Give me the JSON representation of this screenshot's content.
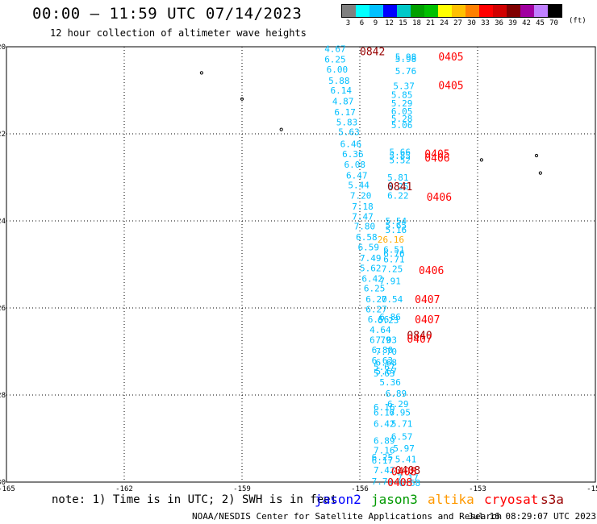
{
  "title": "00:00 – 11:59 UTC 07/14/2023",
  "subtitle": "12 hour collection of altimeter wave heights",
  "scale": {
    "labels": [
      "3",
      "6",
      "9",
      "12",
      "15",
      "18",
      "21",
      "24",
      "27",
      "30",
      "33",
      "36",
      "39",
      "42",
      "45",
      "70"
    ],
    "colors": [
      "#808080",
      "#00ffff",
      "#00c0ff",
      "#0000ff",
      "#00c8c8",
      "#00a000",
      "#00c000",
      "#ffff00",
      "#ffc000",
      "#ff8000",
      "#ff0000",
      "#d00000",
      "#800000",
      "#a000a0",
      "#c080ff",
      "#000000"
    ],
    "unit": "(ft)"
  },
  "axes": {
    "x_ticks": [
      "-165",
      "-162",
      "-159",
      "-156",
      "-153",
      "-150"
    ],
    "y_ticks": [
      "-20",
      "-22",
      "-24",
      "-26",
      "-28",
      "-30"
    ]
  },
  "note": "note: 1) Time is in UTC; 2) SWH is in feet",
  "legend": [
    {
      "label": "jason2",
      "color": "#0000ff"
    },
    {
      "label": "jason3",
      "color": "#009900"
    },
    {
      "label": "altika",
      "color": "#ff9900"
    },
    {
      "label": "cryosat",
      "color": "#ff0000"
    },
    {
      "label": "s3a",
      "color": "#990000"
    }
  ],
  "footer": "NOAA/NESDIS Center for Satellite Applications and Research",
  "footer_date": "Jul 16 08:29:07 UTC 2023",
  "colors": {
    "wave_cyan": "#00bfff",
    "wave_orange": "#ffaa00",
    "time_red": "#ff0000",
    "time_darkred": "#990000"
  },
  "chart_data": {
    "type": "scatter",
    "xlim": [
      -165,
      -150
    ],
    "ylim": [
      -30,
      -20
    ],
    "grid": true,
    "islands": [
      {
        "lon": -160.03,
        "lat": -20.6
      },
      {
        "lon": -159.0,
        "lat": -21.2
      },
      {
        "lon": -158.0,
        "lat": -21.9
      },
      {
        "lon": -152.9,
        "lat": -22.6
      },
      {
        "lon": -151.5,
        "lat": -22.5
      },
      {
        "lon": -151.4,
        "lat": -22.9
      }
    ],
    "wave_labels": [
      {
        "lon": -156.9,
        "lat": -20.05,
        "text": "4.67",
        "color": "cyan"
      },
      {
        "lon": -156.9,
        "lat": -20.29,
        "text": "6.25",
        "color": "cyan"
      },
      {
        "lon": -156.85,
        "lat": -20.52,
        "text": "6.00",
        "color": "cyan"
      },
      {
        "lon": -156.8,
        "lat": -20.78,
        "text": "5.88",
        "color": "cyan"
      },
      {
        "lon": -156.75,
        "lat": -21.0,
        "text": "6.14",
        "color": "cyan"
      },
      {
        "lon": -156.7,
        "lat": -21.25,
        "text": "4.87",
        "color": "cyan"
      },
      {
        "lon": -156.65,
        "lat": -21.5,
        "text": "6.17",
        "color": "cyan"
      },
      {
        "lon": -156.6,
        "lat": -21.73,
        "text": "5.83",
        "color": "cyan"
      },
      {
        "lon": -156.55,
        "lat": -21.95,
        "text": "5.63",
        "color": "cyan"
      },
      {
        "lon": -156.5,
        "lat": -22.23,
        "text": "6.46",
        "color": "cyan"
      },
      {
        "lon": -156.45,
        "lat": -22.46,
        "text": "6.36",
        "color": "cyan"
      },
      {
        "lon": -156.4,
        "lat": -22.7,
        "text": "6.08",
        "color": "cyan"
      },
      {
        "lon": -156.35,
        "lat": -22.95,
        "text": "6.47",
        "color": "cyan"
      },
      {
        "lon": -156.3,
        "lat": -23.18,
        "text": "5.44",
        "color": "cyan"
      },
      {
        "lon": -156.25,
        "lat": -23.42,
        "text": "7.20",
        "color": "cyan"
      },
      {
        "lon": -156.2,
        "lat": -23.67,
        "text": "7.18",
        "color": "cyan"
      },
      {
        "lon": -156.2,
        "lat": -23.9,
        "text": "7.47",
        "color": "cyan"
      },
      {
        "lon": -156.15,
        "lat": -24.12,
        "text": "7.80",
        "color": "cyan"
      },
      {
        "lon": -156.1,
        "lat": -24.37,
        "text": "6.58",
        "color": "cyan"
      },
      {
        "lon": -156.05,
        "lat": -24.6,
        "text": "6.59",
        "color": "cyan"
      },
      {
        "lon": -156.0,
        "lat": -24.85,
        "text": "7.49",
        "color": "cyan"
      },
      {
        "lon": -156.0,
        "lat": -25.08,
        "text": "5.62",
        "color": "cyan"
      },
      {
        "lon": -155.95,
        "lat": -25.32,
        "text": "6.42",
        "color": "cyan"
      },
      {
        "lon": -155.9,
        "lat": -25.55,
        "text": "6.25",
        "color": "cyan"
      },
      {
        "lon": -155.85,
        "lat": -25.8,
        "text": "6.20",
        "color": "cyan"
      },
      {
        "lon": -155.85,
        "lat": -26.03,
        "text": "6.27",
        "color": "cyan"
      },
      {
        "lon": -155.8,
        "lat": -26.26,
        "text": "6.56",
        "color": "cyan"
      },
      {
        "lon": -155.75,
        "lat": -26.5,
        "text": "4.64",
        "color": "cyan"
      },
      {
        "lon": -155.75,
        "lat": -26.73,
        "text": "6.79",
        "color": "cyan"
      },
      {
        "lon": -155.7,
        "lat": -26.96,
        "text": "6.80",
        "color": "cyan"
      },
      {
        "lon": -155.7,
        "lat": -27.2,
        "text": "6.63",
        "color": "cyan"
      },
      {
        "lon": -155.65,
        "lat": -27.35,
        "text": "5.67",
        "color": "cyan"
      },
      {
        "lon": -155.65,
        "lat": -27.5,
        "text": "5.63",
        "color": "cyan"
      },
      {
        "lon": -155.5,
        "lat": -27.7,
        "text": "5.36",
        "color": "cyan"
      },
      {
        "lon": -155.35,
        "lat": -27.96,
        "text": "6.89",
        "color": "cyan"
      },
      {
        "lon": -155.3,
        "lat": -28.2,
        "text": "6.29",
        "color": "cyan"
      },
      {
        "lon": -155.65,
        "lat": -28.28,
        "text": "6.16",
        "color": "cyan"
      },
      {
        "lon": -155.65,
        "lat": -28.4,
        "text": "6.17",
        "color": "cyan"
      },
      {
        "lon": -155.25,
        "lat": -28.4,
        "text": "6.95",
        "color": "cyan"
      },
      {
        "lon": -155.65,
        "lat": -28.66,
        "text": "6.42",
        "color": "cyan"
      },
      {
        "lon": -155.2,
        "lat": -28.66,
        "text": "5.71",
        "color": "cyan"
      },
      {
        "lon": -155.2,
        "lat": -28.95,
        "text": "6.57",
        "color": "cyan"
      },
      {
        "lon": -155.65,
        "lat": -29.05,
        "text": "6.89",
        "color": "cyan"
      },
      {
        "lon": -155.15,
        "lat": -29.22,
        "text": "5.97",
        "color": "cyan"
      },
      {
        "lon": -155.65,
        "lat": -29.27,
        "text": "7.16",
        "color": "cyan"
      },
      {
        "lon": -155.7,
        "lat": -29.43,
        "text": "6.25",
        "color": "cyan"
      },
      {
        "lon": -155.7,
        "lat": -29.5,
        "text": "6.17",
        "color": "cyan"
      },
      {
        "lon": -155.1,
        "lat": -29.47,
        "text": "5.41",
        "color": "cyan"
      },
      {
        "lon": -155.65,
        "lat": -29.72,
        "text": "7.42",
        "color": "cyan"
      },
      {
        "lon": -155.05,
        "lat": -29.9,
        "text": "7.17",
        "color": "cyan"
      },
      {
        "lon": -155.7,
        "lat": -29.98,
        "text": "7.70",
        "color": "cyan"
      },
      {
        "lon": -155.0,
        "lat": -30.02,
        "text": "6.68",
        "color": "cyan"
      },
      {
        "lon": -155.1,
        "lat": -20.23,
        "text": "5.98",
        "color": "cyan"
      },
      {
        "lon": -155.1,
        "lat": -20.28,
        "text": "5.98",
        "color": "cyan"
      },
      {
        "lon": -155.1,
        "lat": -20.56,
        "text": "5.76",
        "color": "cyan"
      },
      {
        "lon": -155.15,
        "lat": -20.9,
        "text": "5.37",
        "color": "cyan"
      },
      {
        "lon": -155.2,
        "lat": -21.1,
        "text": "5.85",
        "color": "cyan"
      },
      {
        "lon": -155.2,
        "lat": -21.3,
        "text": "5.29",
        "color": "cyan"
      },
      {
        "lon": -155.2,
        "lat": -21.48,
        "text": "6.05",
        "color": "cyan"
      },
      {
        "lon": -155.2,
        "lat": -21.65,
        "text": "5.28",
        "color": "cyan"
      },
      {
        "lon": -155.2,
        "lat": -21.8,
        "text": "5.06",
        "color": "cyan"
      },
      {
        "lon": -155.25,
        "lat": -22.42,
        "text": "5.66",
        "color": "cyan"
      },
      {
        "lon": -155.25,
        "lat": -22.5,
        "text": "5.85",
        "color": "cyan"
      },
      {
        "lon": -155.25,
        "lat": -22.6,
        "text": "5.52",
        "color": "cyan"
      },
      {
        "lon": -155.3,
        "lat": -23.0,
        "text": "5.81",
        "color": "cyan"
      },
      {
        "lon": -155.3,
        "lat": -23.2,
        "text": "6.25",
        "color": "cyan"
      },
      {
        "lon": -155.3,
        "lat": -23.42,
        "text": "6.22",
        "color": "cyan"
      },
      {
        "lon": -155.35,
        "lat": -24.0,
        "text": "5.54",
        "color": "cyan"
      },
      {
        "lon": -155.35,
        "lat": -24.1,
        "text": "5.65",
        "color": "cyan"
      },
      {
        "lon": -155.35,
        "lat": -24.2,
        "text": "5.16",
        "color": "cyan"
      },
      {
        "lon": -155.55,
        "lat": -24.43,
        "text": "26.16",
        "color": "orange"
      },
      {
        "lon": -155.4,
        "lat": -24.66,
        "text": "6.51",
        "color": "cyan"
      },
      {
        "lon": -155.4,
        "lat": -24.75,
        "text": "6.76",
        "color": "cyan"
      },
      {
        "lon": -155.4,
        "lat": -24.88,
        "text": "6.71",
        "color": "cyan"
      },
      {
        "lon": -155.45,
        "lat": -25.1,
        "text": "7.25",
        "color": "cyan"
      },
      {
        "lon": -155.5,
        "lat": -25.38,
        "text": "7.91",
        "color": "cyan"
      },
      {
        "lon": -155.45,
        "lat": -25.8,
        "text": "7.54",
        "color": "cyan"
      },
      {
        "lon": -155.5,
        "lat": -26.2,
        "text": "6.86",
        "color": "cyan"
      },
      {
        "lon": -155.55,
        "lat": -26.28,
        "text": "6.23",
        "color": "cyan"
      },
      {
        "lon": -155.6,
        "lat": -26.73,
        "text": "7.03",
        "color": "cyan"
      },
      {
        "lon": -155.6,
        "lat": -27.0,
        "text": "7.70",
        "color": "cyan"
      },
      {
        "lon": -155.6,
        "lat": -27.25,
        "text": "6.68",
        "color": "cyan"
      },
      {
        "lon": -155.6,
        "lat": -27.45,
        "text": "5.67",
        "color": "cyan"
      }
    ],
    "time_labels": [
      {
        "lon": -156.0,
        "lat": -20.1,
        "text": "0842",
        "color": "darkred"
      },
      {
        "lon": -154.0,
        "lat": -20.22,
        "text": "0405",
        "color": "red"
      },
      {
        "lon": -154.0,
        "lat": -20.88,
        "text": "0405",
        "color": "red"
      },
      {
        "lon": -154.35,
        "lat": -22.45,
        "text": "0405",
        "color": "red"
      },
      {
        "lon": -154.35,
        "lat": -22.55,
        "text": "0406",
        "color": "red"
      },
      {
        "lon": -155.3,
        "lat": -23.2,
        "text": "0841",
        "color": "darkred"
      },
      {
        "lon": -154.3,
        "lat": -23.44,
        "text": "0406",
        "color": "red"
      },
      {
        "lon": -154.5,
        "lat": -25.13,
        "text": "0406",
        "color": "red"
      },
      {
        "lon": -154.6,
        "lat": -25.8,
        "text": "0407",
        "color": "red"
      },
      {
        "lon": -154.6,
        "lat": -26.26,
        "text": "0407",
        "color": "red"
      },
      {
        "lon": -154.8,
        "lat": -26.62,
        "text": "0840",
        "color": "darkred"
      },
      {
        "lon": -154.8,
        "lat": -26.7,
        "text": "0407",
        "color": "red"
      },
      {
        "lon": -155.1,
        "lat": -29.72,
        "text": "0408",
        "color": "darkred"
      },
      {
        "lon": -155.2,
        "lat": -29.75,
        "text": "0408",
        "color": "red"
      },
      {
        "lon": -155.3,
        "lat": -30.0,
        "text": "0408",
        "color": "red"
      }
    ]
  }
}
